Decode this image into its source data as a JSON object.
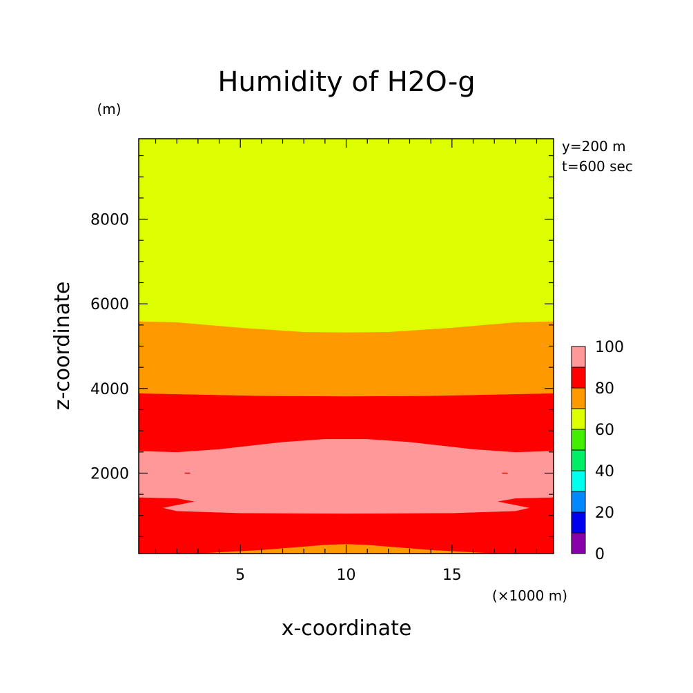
{
  "chart_data": {
    "type": "heatmap",
    "title": "Humidity of H2O-g",
    "xlabel": "x-coordinate",
    "ylabel": "z-coordinate",
    "x_unit": "(×1000 m)",
    "y_unit": "(m)",
    "info": [
      "y=200 m",
      "t=600 sec"
    ],
    "xlim": [
      0.2,
      19.8
    ],
    "ylim": [
      100,
      9900
    ],
    "x_ticks": [
      5,
      10,
      15
    ],
    "y_ticks": [
      2000,
      4000,
      6000,
      8000
    ],
    "colorbar": {
      "levels": [
        0,
        10,
        20,
        30,
        40,
        50,
        60,
        70,
        80,
        90,
        100
      ],
      "tick_labels": [
        0,
        20,
        40,
        60,
        80,
        100
      ],
      "colors": [
        "#8800aa",
        "#0000ee",
        "#0088ff",
        "#00ffee",
        "#00ee66",
        "#44ee00",
        "#ddff00",
        "#ff9900",
        "#ff0000",
        "#ff9999"
      ]
    },
    "contours": [
      {
        "level": "70-80",
        "color": "#ff9900",
        "boundary_top": [
          [
            0.2,
            5580
          ],
          [
            2,
            5560
          ],
          [
            5,
            5430
          ],
          [
            8,
            5330
          ],
          [
            10,
            5320
          ],
          [
            12,
            5330
          ],
          [
            15,
            5430
          ],
          [
            18,
            5560
          ],
          [
            19.8,
            5580
          ]
        ],
        "boundary_bottom": [
          [
            0.2,
            3880
          ],
          [
            3,
            3850
          ],
          [
            6,
            3820
          ],
          [
            10,
            3810
          ],
          [
            14,
            3820
          ],
          [
            17,
            3850
          ],
          [
            19.8,
            3880
          ]
        ]
      },
      {
        "level": "80-90 upper",
        "color": "#ff0000",
        "boundary_top": [
          [
            0.2,
            3880
          ],
          [
            3,
            3850
          ],
          [
            6,
            3820
          ],
          [
            10,
            3810
          ],
          [
            14,
            3820
          ],
          [
            17,
            3850
          ],
          [
            19.8,
            3880
          ]
        ],
        "boundary_bottom": [
          [
            0.2,
            2520
          ],
          [
            2,
            2490
          ],
          [
            4,
            2560
          ],
          [
            7,
            2730
          ],
          [
            9,
            2800
          ],
          [
            11,
            2800
          ],
          [
            13,
            2730
          ],
          [
            16,
            2560
          ],
          [
            18,
            2490
          ],
          [
            19.8,
            2520
          ]
        ]
      },
      {
        "level": "90-100",
        "color": "#ff9999",
        "boundary_top": [
          [
            0.2,
            2520
          ],
          [
            2,
            2490
          ],
          [
            4,
            2560
          ],
          [
            7,
            2730
          ],
          [
            9,
            2800
          ],
          [
            11,
            2800
          ],
          [
            13,
            2730
          ],
          [
            16,
            2560
          ],
          [
            18,
            2490
          ],
          [
            19.8,
            2520
          ]
        ],
        "boundary_bottom": [
          [
            0.2,
            1420
          ],
          [
            2,
            1400
          ],
          [
            2.8,
            1330
          ],
          [
            1.3,
            1180
          ],
          [
            2,
            1100
          ],
          [
            5,
            1050
          ],
          [
            10,
            1040
          ],
          [
            15,
            1050
          ],
          [
            18,
            1100
          ],
          [
            18.7,
            1180
          ],
          [
            17.2,
            1330
          ],
          [
            18,
            1400
          ],
          [
            19.8,
            1420
          ]
        ]
      },
      {
        "level": "80-90 lower",
        "color": "#ff0000",
        "boundary_top": [
          [
            0.2,
            1420
          ],
          [
            2,
            1400
          ],
          [
            2.8,
            1330
          ],
          [
            1.3,
            1180
          ],
          [
            2,
            1100
          ],
          [
            5,
            1050
          ],
          [
            10,
            1040
          ],
          [
            15,
            1050
          ],
          [
            18,
            1100
          ],
          [
            18.7,
            1180
          ],
          [
            17.2,
            1330
          ],
          [
            18,
            1400
          ],
          [
            19.8,
            1420
          ]
        ],
        "boundary_bottom": [
          [
            0.2,
            100
          ],
          [
            3,
            100
          ],
          [
            6,
            180
          ],
          [
            9,
            300
          ],
          [
            10,
            320
          ],
          [
            11,
            300
          ],
          [
            14,
            180
          ],
          [
            17,
            100
          ],
          [
            19.8,
            100
          ]
        ]
      },
      {
        "level": "70-80 bottom",
        "color": "#ff9900",
        "boundary_top": [
          [
            3,
            100
          ],
          [
            6,
            180
          ],
          [
            9,
            300
          ],
          [
            10,
            320
          ],
          [
            11,
            300
          ],
          [
            14,
            180
          ],
          [
            17,
            100
          ]
        ],
        "boundary_bottom": [
          [
            3,
            100
          ],
          [
            17,
            100
          ]
        ]
      }
    ],
    "background_level": {
      "level": "60-70",
      "color": "#ddff00"
    }
  }
}
